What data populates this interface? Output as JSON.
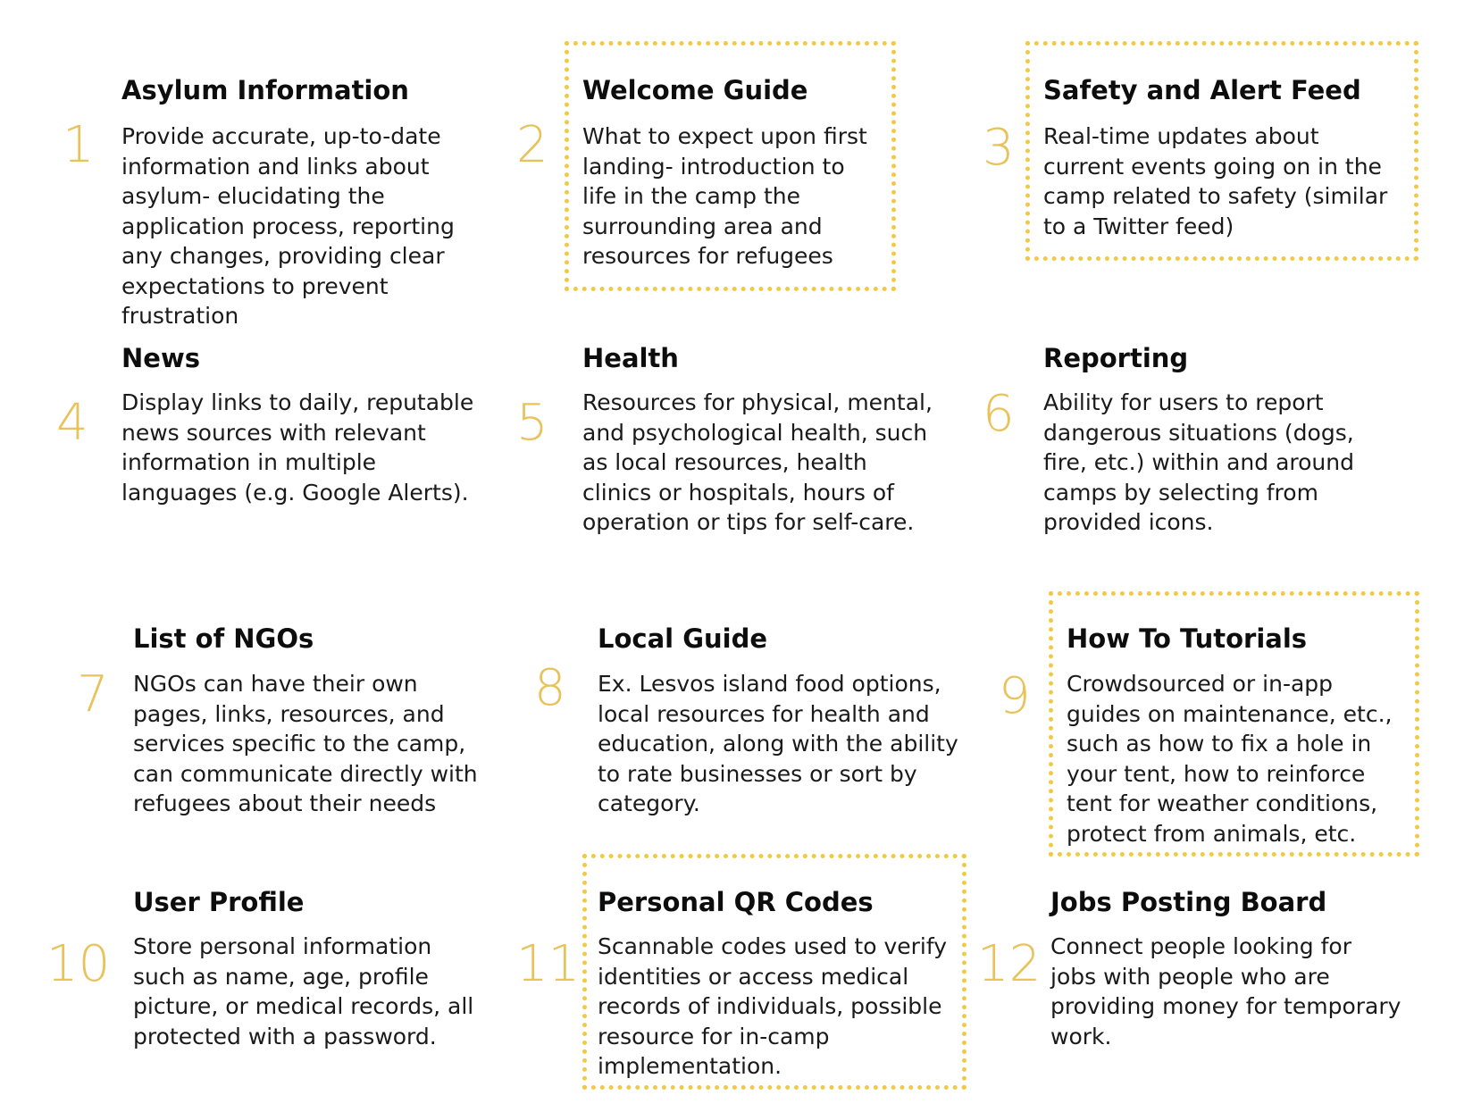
{
  "features": [
    {
      "number": "1",
      "title": "Asylum Information",
      "description": "Provide accurate, up-to-date information and links about asylum- elucidating the application process, reporting any changes, providing clear expectations to prevent frustration",
      "boxed": false
    },
    {
      "number": "2",
      "title": "Welcome Guide",
      "description": "What to expect upon first landing- introduction to life in the camp the surrounding area and resources for refugees",
      "boxed": true
    },
    {
      "number": "3",
      "title": "Safety and Alert Feed",
      "description": "Real-time updates about current events going on in the camp related to safety (similar to a Twitter feed)",
      "boxed": true
    },
    {
      "number": "4",
      "title": "News",
      "description": "Display links to daily, reputable news sources with relevant information in multiple languages (e.g. Google Alerts).",
      "boxed": false
    },
    {
      "number": "5",
      "title": "Health",
      "description": "Resources for physical, mental, and psychological health, such as local resources, health clinics or hospitals, hours of operation or tips for self-care.",
      "boxed": false
    },
    {
      "number": "6",
      "title": "Reporting",
      "description": "Ability for users to report dangerous situations (dogs, fire, etc.) within and around camps by selecting from provided icons.",
      "boxed": false
    },
    {
      "number": "7",
      "title": "List of NGOs",
      "description": "NGOs can have their own pages, links, resources, and services specific to the camp, can communicate directly with refugees about their needs",
      "boxed": false
    },
    {
      "number": "8",
      "title": "Local Guide",
      "description": "Ex. Lesvos island food options, local resources for health and education, along with the ability to rate businesses or sort by category.",
      "boxed": false
    },
    {
      "number": "9",
      "title": "How To Tutorials",
      "description": "Crowdsourced or in-app guides on maintenance, etc., such as how to fix a hole in your tent, how to reinforce tent for weather conditions, protect from animals, etc.",
      "boxed": true
    },
    {
      "number": "10",
      "title": "User Profile",
      "description": "Store personal information such as name, age, profile picture, or medical records, all protected with a password.",
      "boxed": false
    },
    {
      "number": "11",
      "title": "Personal QR Codes",
      "description": "Scannable codes used to verify identities or access medical records of individuals, possible resource for in-camp implementation.",
      "boxed": true
    },
    {
      "number": "12",
      "title": "Jobs Posting Board",
      "description": "Connect people looking for jobs with people who are providing money for temporary work.",
      "boxed": false
    }
  ],
  "colors": {
    "number": "#e8c25a",
    "box_border": "#f0ca45",
    "text": "#111111"
  }
}
